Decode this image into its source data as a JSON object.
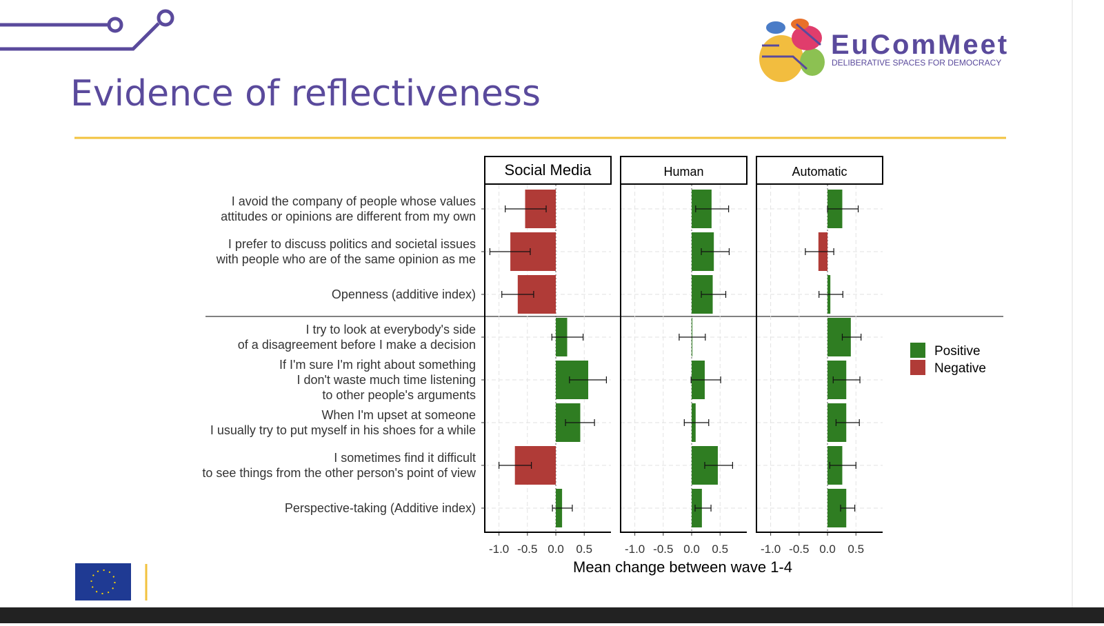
{
  "header": {
    "title": "Evidence of reflectiveness",
    "logo_name": "EuComMeet",
    "logo_tagline": "DELIBERATIVE SPACES FOR DEMOCRACY"
  },
  "chart_data": {
    "type": "bar",
    "orientation": "horizontal",
    "categories": [
      [
        "I avoid the company of people whose values",
        "attitudes or opinions are different from my own"
      ],
      [
        "I prefer to discuss politics and societal issues",
        "with people who are of the same opinion as me"
      ],
      [
        "Openness (additive index)"
      ],
      [
        "I try to look at everybody's side",
        "of a disagreement before I make a decision"
      ],
      [
        "If I'm sure I'm right about something",
        "I don't waste much time listening",
        "to other people's arguments"
      ],
      [
        "When I'm upset at someone",
        "I usually try to put myself in his shoes for a while"
      ],
      [
        "I sometimes find it difficult",
        "to see things from the other person's point of view"
      ],
      [
        "Perspective-taking (Additive index)"
      ]
    ],
    "facets": [
      {
        "title": "Social Media",
        "values": [
          -0.54,
          -0.8,
          -0.67,
          0.2,
          0.57,
          0.43,
          -0.72,
          0.11
        ],
        "ci_low": [
          -0.89,
          -1.16,
          -0.95,
          -0.07,
          0.24,
          0.17,
          -1.0,
          -0.06
        ],
        "ci_high": [
          -0.17,
          -0.45,
          -0.39,
          0.48,
          0.89,
          0.68,
          -0.43,
          0.29
        ]
      },
      {
        "title": "Human",
        "values": [
          0.35,
          0.39,
          0.37,
          0.01,
          0.23,
          0.07,
          0.46,
          0.18
        ],
        "ci_low": [
          0.07,
          0.17,
          0.17,
          -0.22,
          -0.01,
          -0.13,
          0.23,
          0.06
        ],
        "ci_high": [
          0.65,
          0.66,
          0.6,
          0.24,
          0.51,
          0.3,
          0.72,
          0.34
        ]
      },
      {
        "title": "Automatic",
        "values": [
          0.26,
          -0.16,
          0.05,
          0.41,
          0.33,
          0.33,
          0.26,
          0.33
        ],
        "ci_low": [
          0,
          -0.39,
          -0.15,
          0.26,
          0.1,
          0.15,
          0.04,
          0.23
        ],
        "ci_high": [
          0.54,
          0.11,
          0.27,
          0.59,
          0.57,
          0.56,
          0.5,
          0.48
        ]
      }
    ],
    "xlim": [
      -1.25,
      0.97
    ],
    "xticks": [
      {
        "value": -1,
        "label": "-1.0"
      },
      -0.5,
      {
        "value": 0,
        "label": "0.0"
      },
      0.5
    ],
    "x_label": "Mean change between wave 1-4",
    "legend": [
      {
        "name": "Positive",
        "color": "#2f7d22"
      },
      {
        "name": "Negative",
        "color": "#b03b37"
      }
    ],
    "grid": true
  }
}
